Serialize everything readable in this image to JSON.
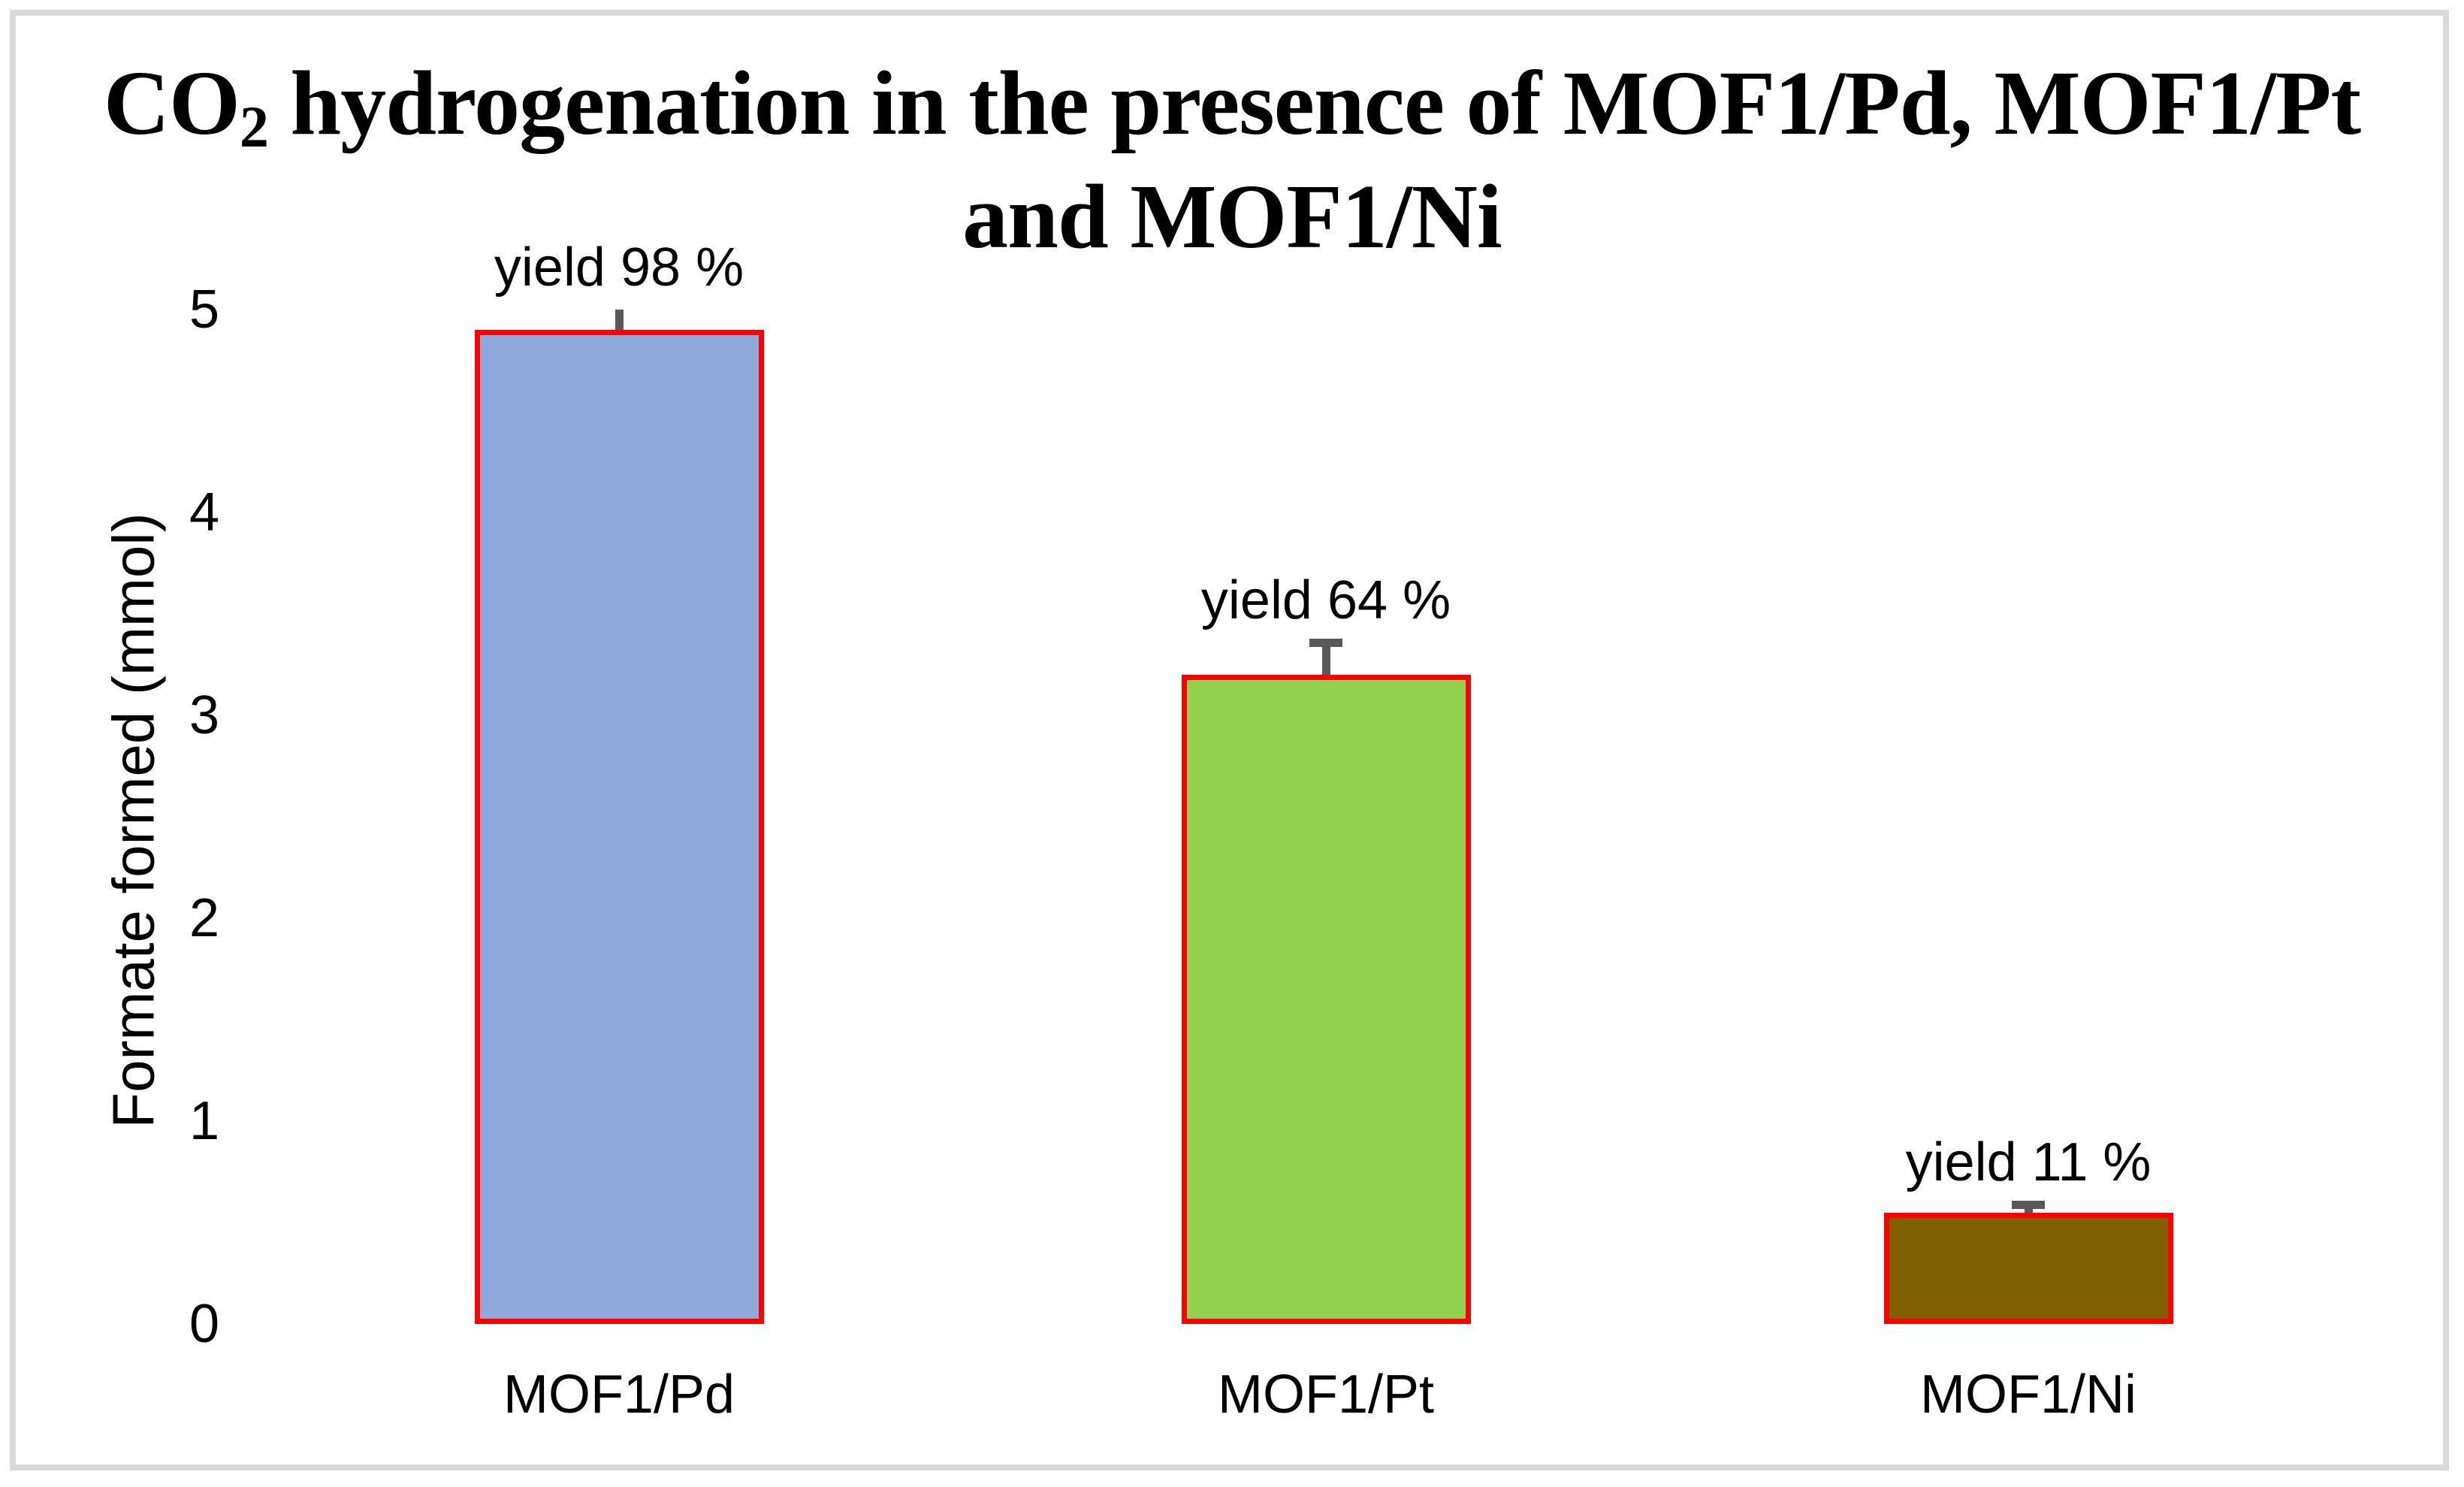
{
  "chart_data": {
    "type": "bar",
    "title": "CO2 hydrogenation in the presence of MOF1/Pd, MOF1/Pt and MOF1/Ni",
    "title_render": {
      "line1_pre": "CO",
      "line1_sub": "2",
      "line1_rest": " hydrogenation in the presence of MOF1/Pd, MOF1/Pt",
      "line2": "and MOF1/Ni"
    },
    "xlabel": "",
    "ylabel": "Formate formed (mmol)",
    "ylim": [
      0,
      5
    ],
    "y_ticks": [
      0,
      1,
      2,
      3,
      4,
      5
    ],
    "grid": false,
    "legend": false,
    "axis_lines": false,
    "categories": [
      "MOF1/Pd",
      "MOF1/Pt",
      "MOF1/Ni"
    ],
    "values": [
      4.9,
      3.2,
      0.55
    ],
    "annotations": [
      "yield 98 %",
      "yield 64 %",
      "yield 11 %"
    ],
    "bars": [
      {
        "category": "MOF1/Pd",
        "value": 4.9,
        "annotation": "yield 98 %",
        "fill": "#8EA9DB",
        "border": "#FF0000",
        "error": {
          "upper": 5.0,
          "lower": 4.65,
          "cap_top": false,
          "cap_bottom": true
        }
      },
      {
        "category": "MOF1/Pt",
        "value": 3.2,
        "annotation": "yield 64 %",
        "fill": "#92D050",
        "border": "#FF0000",
        "error": {
          "upper": 3.36,
          "lower": 3.02,
          "cap_top": true,
          "cap_bottom": true
        }
      },
      {
        "category": "MOF1/Ni",
        "value": 0.55,
        "annotation": "yield 11 %",
        "fill": "#7F6000",
        "border": "#FF0000",
        "error": {
          "upper": 0.59,
          "lower": 0.51,
          "cap_top": true,
          "cap_bottom": true
        }
      }
    ],
    "colors": {
      "error_bar": "#595959",
      "bar_border": "#FF0000",
      "frame": "#D9D9D9",
      "text": "#000000",
      "background": "#FFFFFF"
    }
  }
}
